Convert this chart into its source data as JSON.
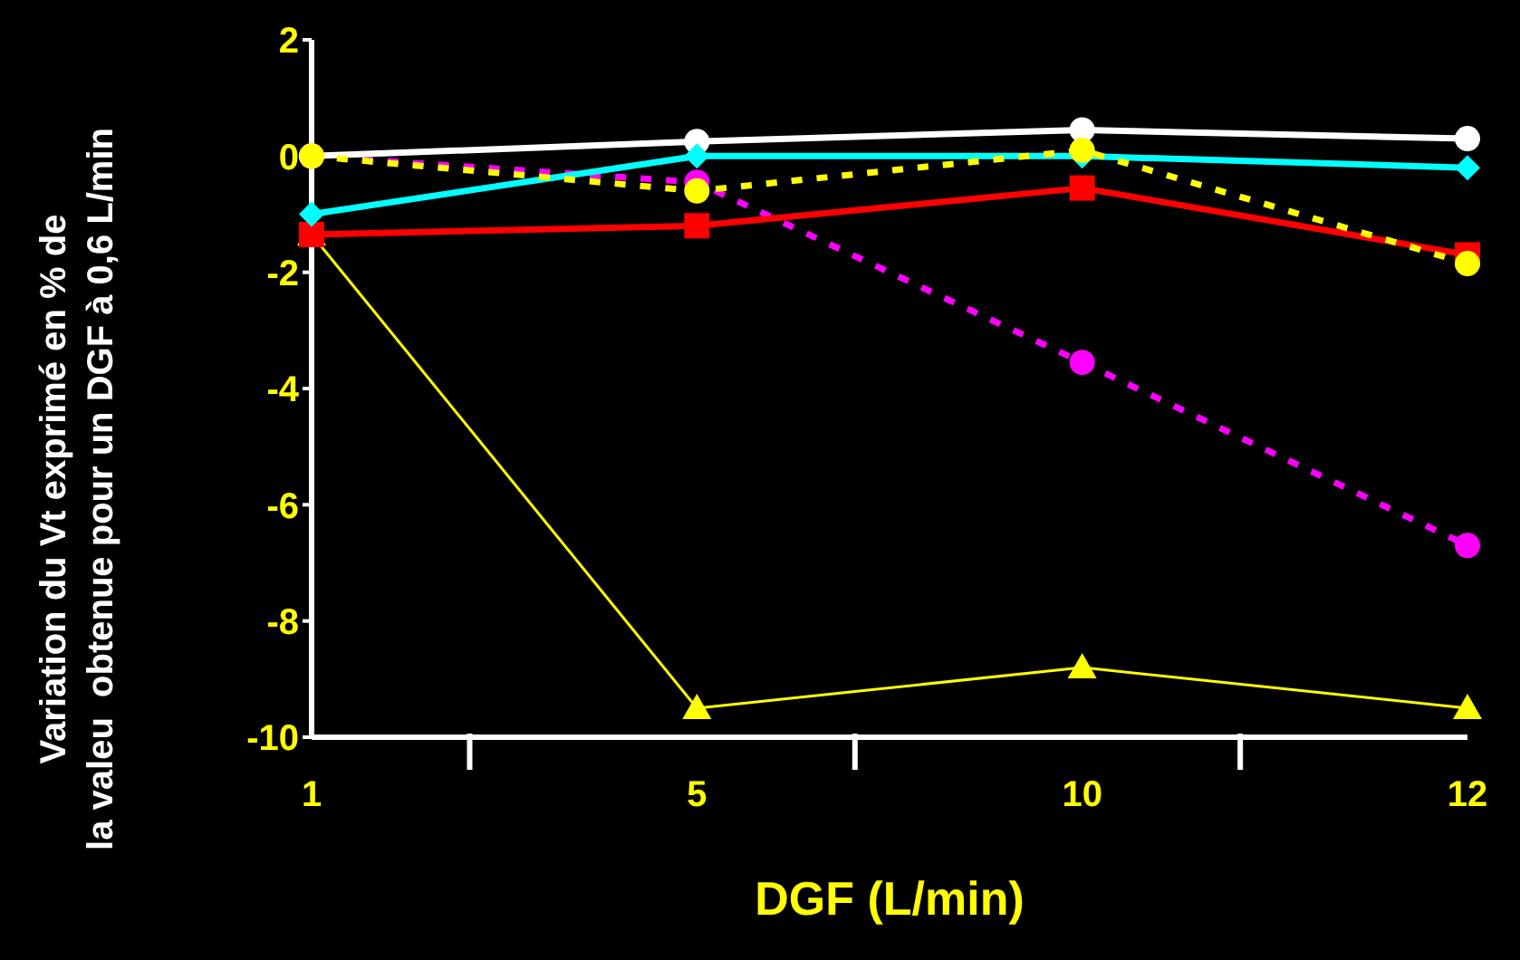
{
  "chart_data": {
    "type": "line",
    "xlabel": "DGF (L/min)",
    "ylabel": "Variation du Vt exprimé en % de\nla valeu  obtenue pour un DGF à 0,6 L/min",
    "categories": [
      "1",
      "5",
      "10",
      "12"
    ],
    "ylim": [
      -10,
      2
    ],
    "yticks": [
      -10,
      -8,
      -6,
      -4,
      -2,
      0,
      2
    ],
    "series": [
      {
        "color": "#ffff00",
        "values": [
          -1.35,
          -9.5,
          -8.8,
          -9.5
        ],
        "marker": "triangle",
        "line_style": "solid"
      },
      {
        "color": "#ff00ff",
        "values": [
          0,
          -0.45,
          -3.55,
          -6.7
        ],
        "marker": "circle",
        "line_style": "dotted"
      },
      {
        "color": "#ff0000",
        "values": [
          -1.35,
          -1.2,
          -0.55,
          -1.7
        ],
        "marker": "square",
        "line_style": "solid"
      },
      {
        "color": "#ffffff",
        "values": [
          0,
          0.25,
          0.45,
          0.3
        ],
        "marker": "circle",
        "line_style": "solid"
      },
      {
        "color": "#00ffff",
        "values": [
          -1,
          0,
          0,
          -0.2
        ],
        "marker": "diamond",
        "line_style": "solid"
      },
      {
        "color": "#ffff00",
        "values": [
          0,
          -0.6,
          0.1,
          -1.85
        ],
        "marker": "circle",
        "line_style": "dotted"
      }
    ]
  }
}
